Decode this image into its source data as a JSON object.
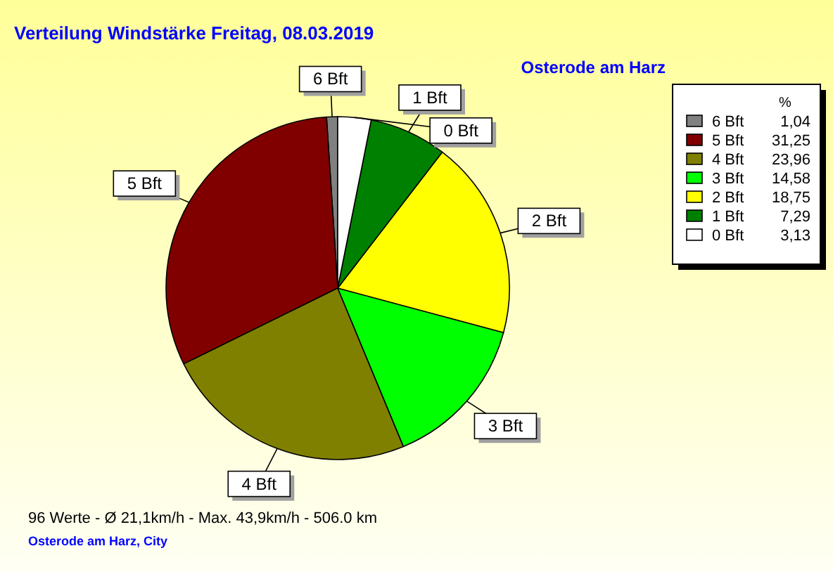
{
  "chart_data": {
    "type": "pie",
    "title": "Verteilung Windstärke  Freitag, 08.03.2019",
    "subtitle": "Osterode am Harz",
    "legend_title": "%",
    "legend": "right",
    "categories": [
      "6 Bft",
      "5 Bft",
      "4 Bft",
      "3 Bft",
      "2 Bft",
      "1 Bft",
      "0 Bft"
    ],
    "values": [
      1.04,
      31.25,
      23.96,
      14.58,
      18.75,
      7.29,
      3.13
    ],
    "value_labels": [
      "1,04",
      "31,25",
      "23,96",
      "14,58",
      "18,75",
      "7,29",
      "3,13"
    ],
    "colors": [
      "#808080",
      "#800000",
      "#808000",
      "#00ff00",
      "#ffff00",
      "#008000",
      "#ffffff"
    ],
    "annotations": [
      "96 Werte   -   Ø 21,1km/h  -  Max. 43,9km/h   -   506.0 km",
      "Osterode am Harz, City"
    ]
  }
}
